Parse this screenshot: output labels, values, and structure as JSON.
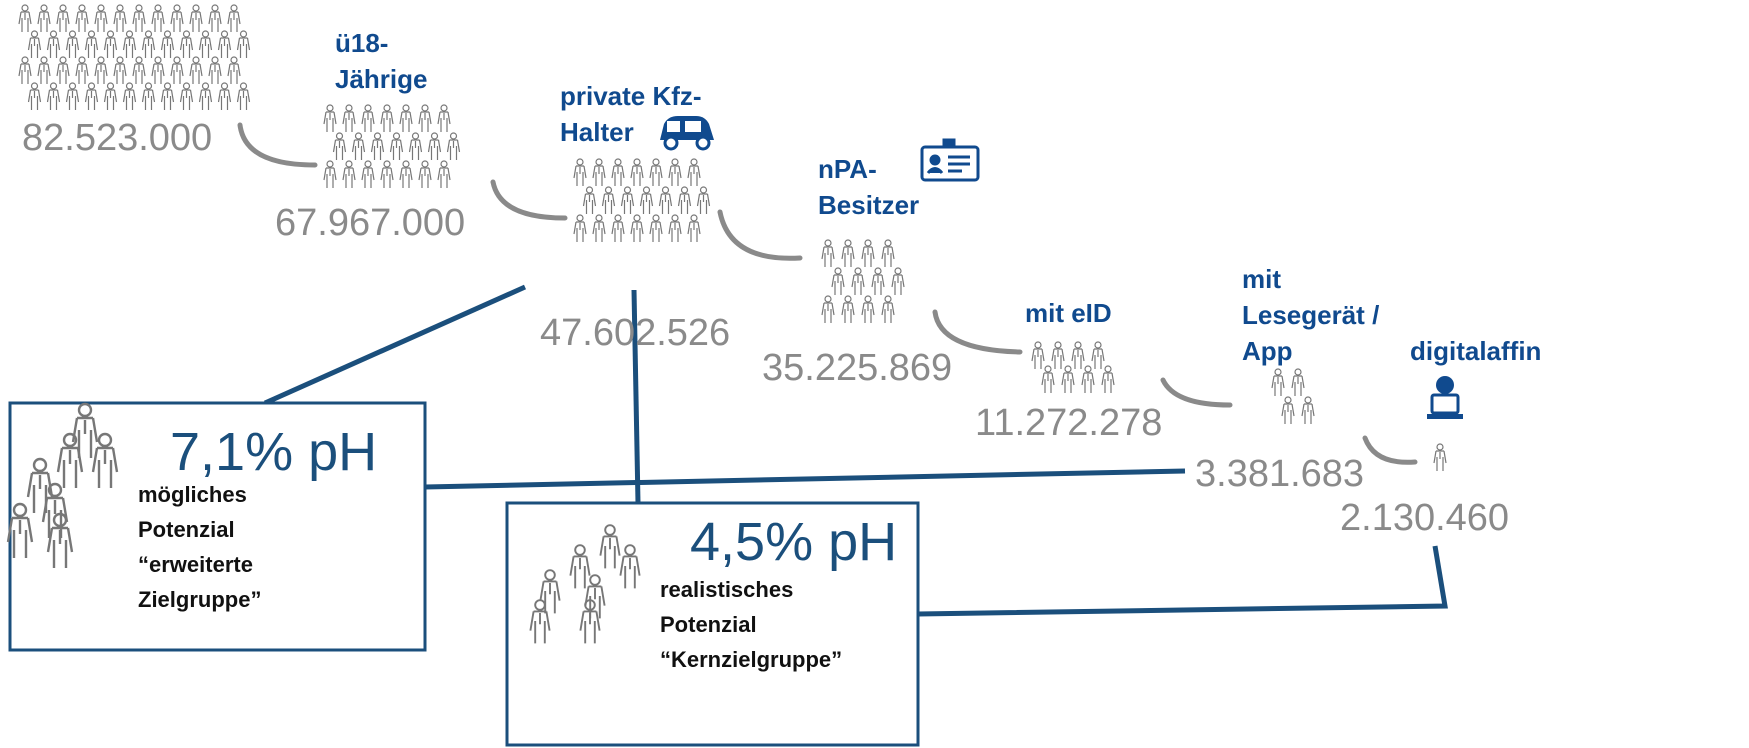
{
  "stages": [
    {
      "value": "82.523.000"
    },
    {
      "label": [
        "ü18-",
        "Jährige"
      ],
      "value": "67.967.000"
    },
    {
      "label": [
        "private Kfz-",
        "Halter"
      ],
      "value": "47.602.526"
    },
    {
      "label": [
        "nPA-",
        "Besitzer"
      ],
      "value": "35.225.869"
    },
    {
      "label": [
        "mit eID"
      ],
      "value": "11.272.278"
    },
    {
      "label": [
        "mit",
        "Lesegerät /",
        "App"
      ],
      "value": "3.381.683"
    },
    {
      "label": [
        "digitalaffin"
      ],
      "value": "2.130.460"
    }
  ],
  "boxes": [
    {
      "percent": "7,1% pH",
      "lines": [
        "mögliches",
        "Potenzial",
        "“erweiterte",
        "Zielgruppe”"
      ]
    },
    {
      "percent": "4,5% pH",
      "lines": [
        "realistisches",
        "Potenzial",
        "“Kernzielgruppe”"
      ]
    }
  ]
}
